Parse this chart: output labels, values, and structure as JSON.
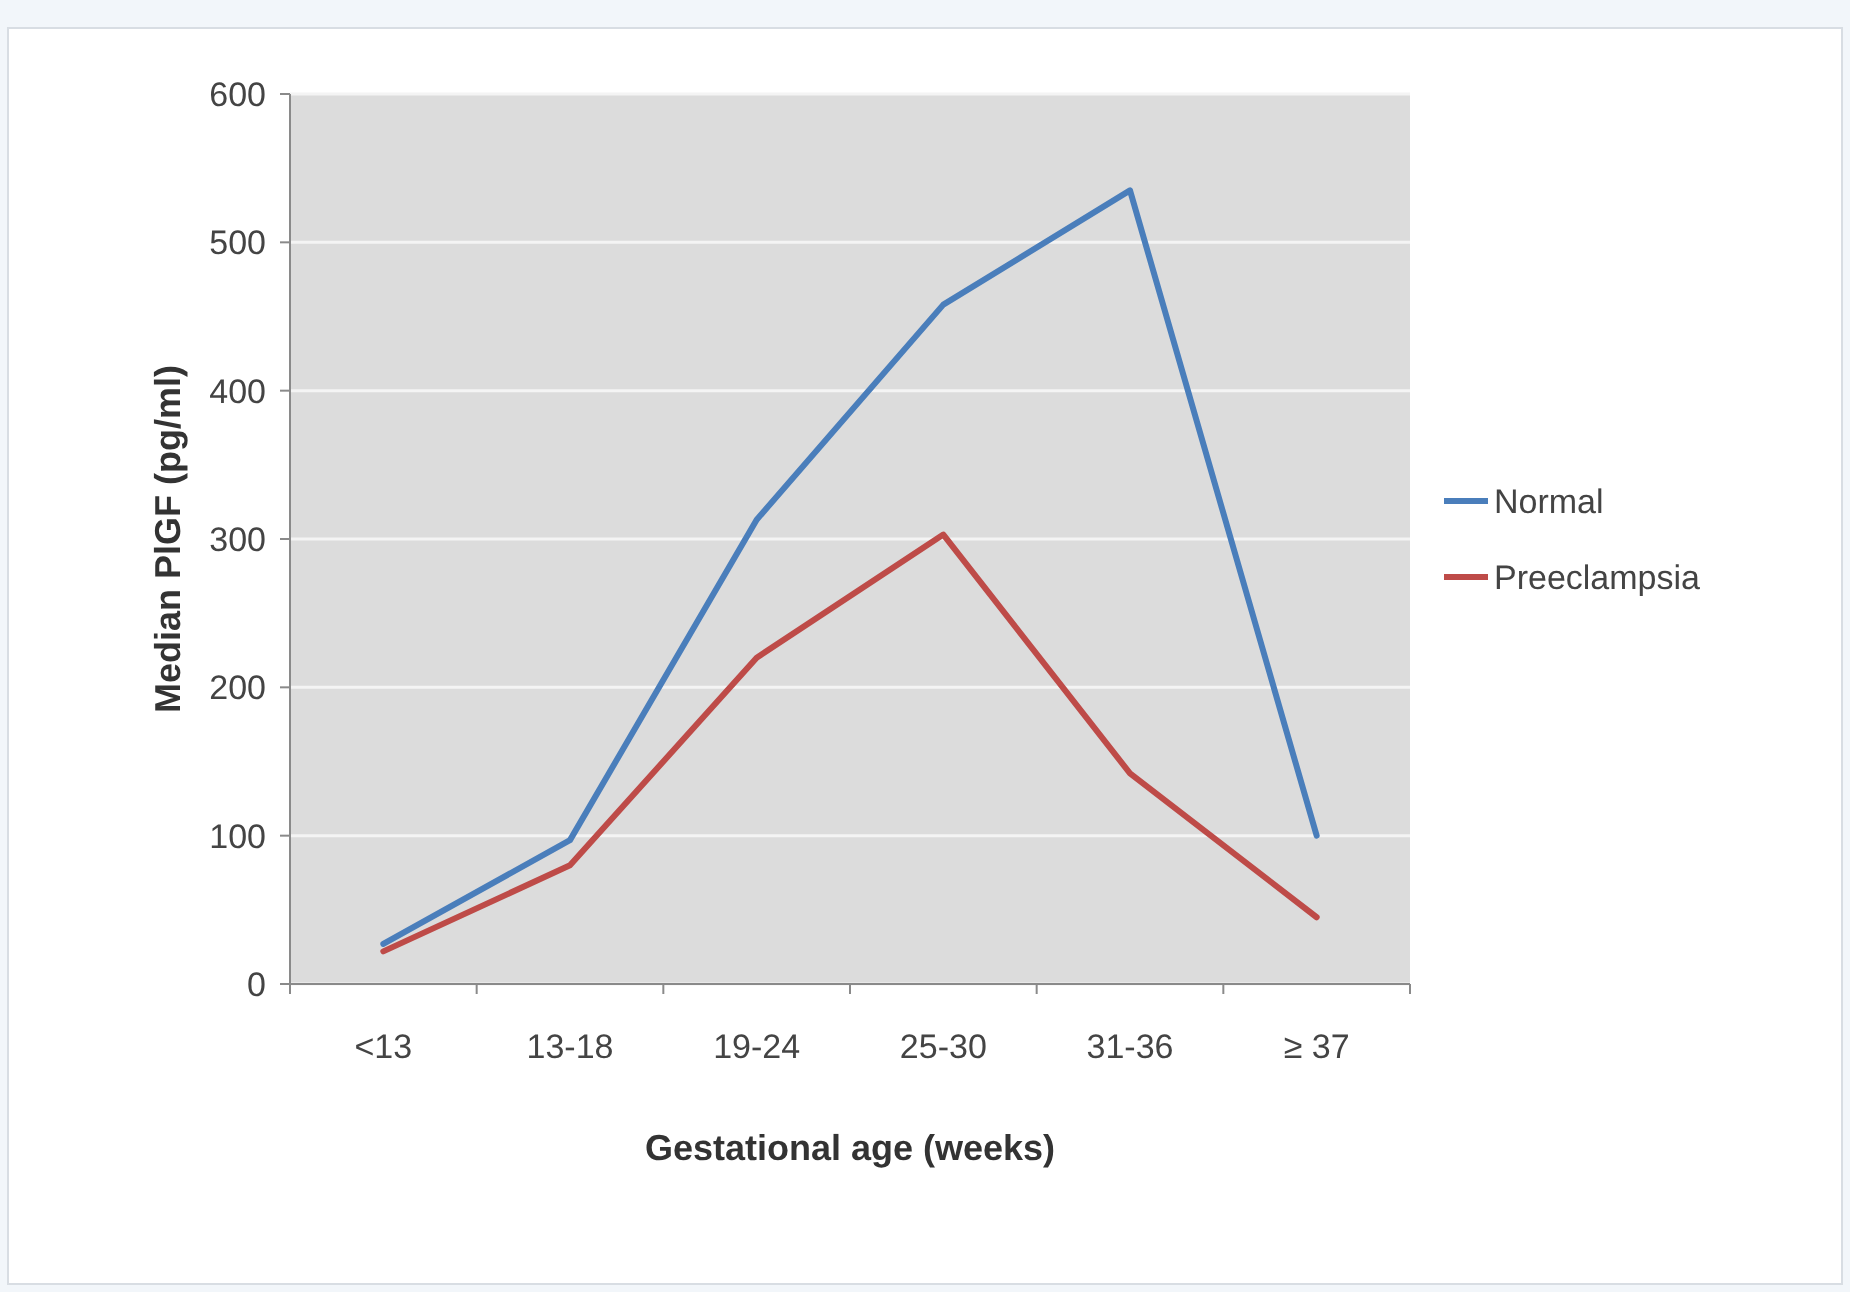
{
  "chart_data": {
    "type": "line",
    "xlabel": "Gestational age (weeks)",
    "ylabel": "Median PlGF (pg/ml)",
    "categories": [
      "<13",
      "13-18",
      "19-24",
      "25-30",
      "31-36",
      "≥ 37"
    ],
    "series": [
      {
        "name": "Normal",
        "color": "#4a7ebb",
        "values": [
          27,
          97,
          313,
          458,
          535,
          100
        ]
      },
      {
        "name": "Preeclampsia",
        "color": "#be4b48",
        "values": [
          22,
          80,
          220,
          303,
          142,
          45
        ]
      }
    ],
    "ylim": [
      0,
      600
    ],
    "yticks": [
      0,
      100,
      200,
      300,
      400,
      500,
      600
    ],
    "grid": "y",
    "legend": "right",
    "marker": "none",
    "line_style": "solid"
  }
}
